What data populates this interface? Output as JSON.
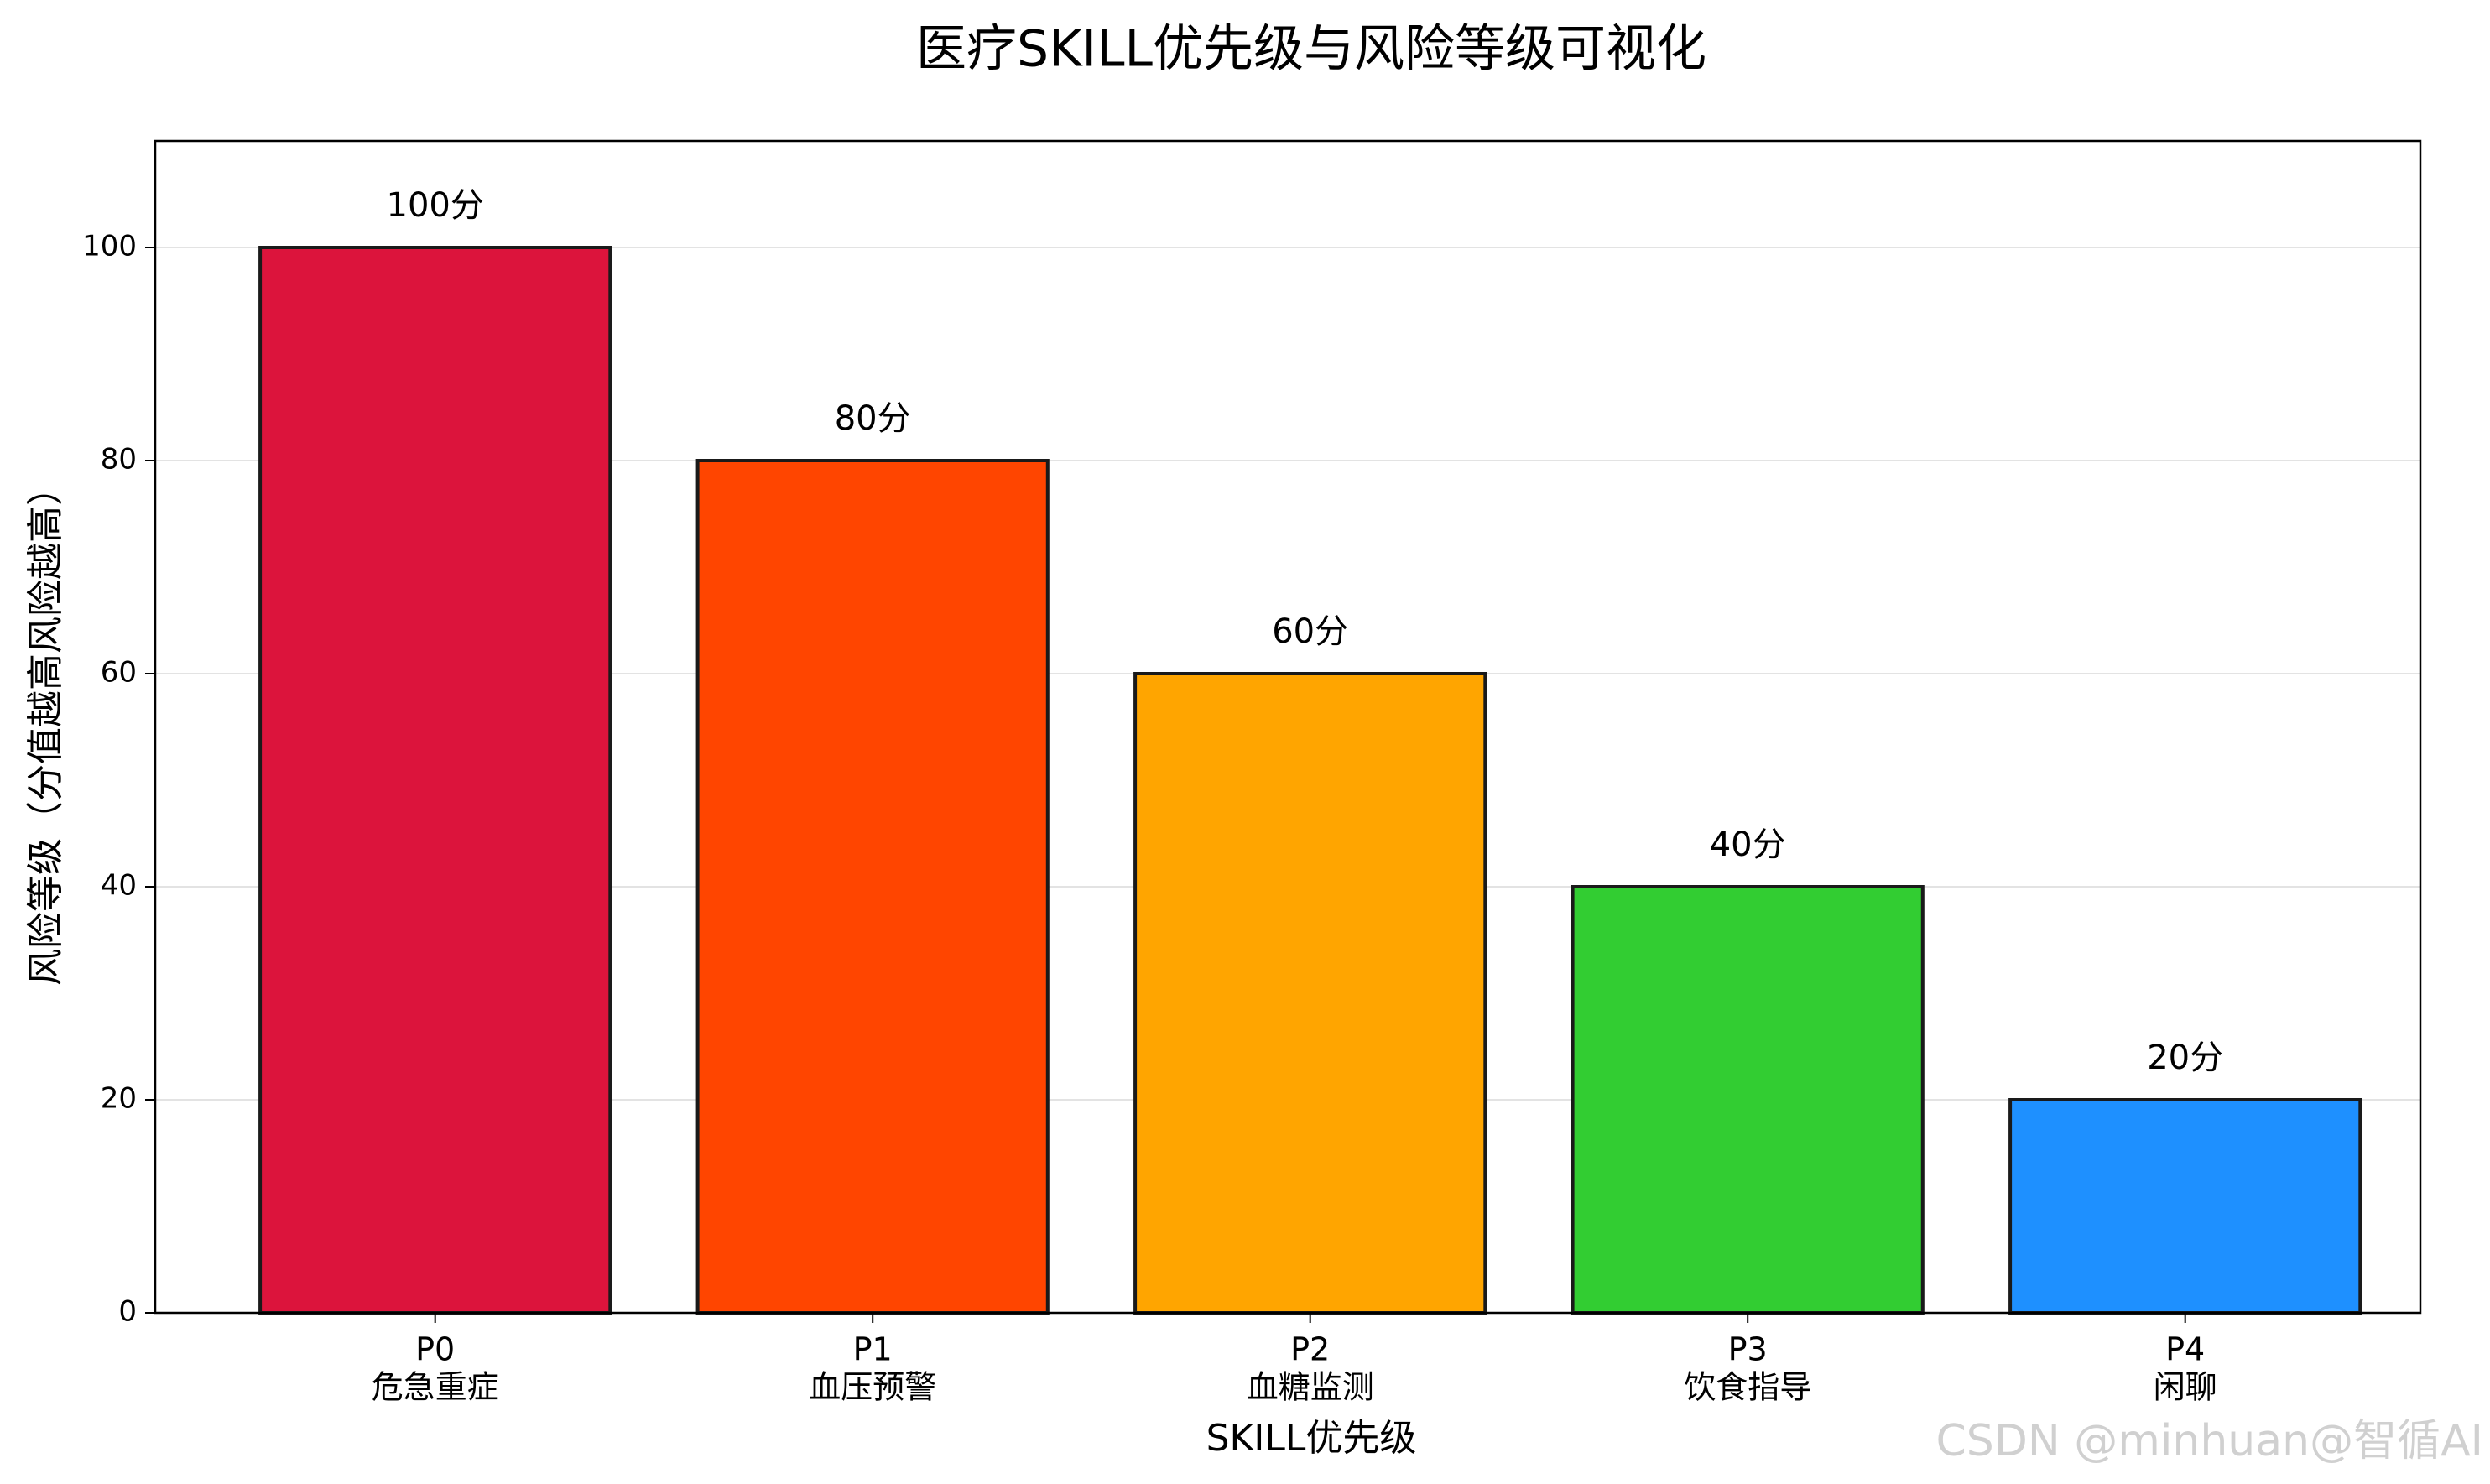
{
  "chart_data": {
    "type": "bar",
    "title": "医疗SKILL优先级与风险等级可视化",
    "x_label": "SKILL优先级",
    "y_label": "风险等级（分值越高风险越高）",
    "categories": [
      [
        "P0",
        "危急重症"
      ],
      [
        "P1",
        "血压预警"
      ],
      [
        "P2",
        "血糖监测"
      ],
      [
        "P3",
        "饮食指导"
      ],
      [
        "P4",
        "闲聊"
      ]
    ],
    "values": [
      100,
      80,
      60,
      40,
      20
    ],
    "value_labels": [
      "100分",
      "80分",
      "60分",
      "40分",
      "20分"
    ],
    "colors": [
      "#dc143c",
      "#ff4500",
      "#ffa500",
      "#32cd32",
      "#1e90ff"
    ],
    "ylim": [
      0,
      110
    ],
    "yticks": [
      0,
      20,
      40,
      60,
      80,
      100
    ],
    "grid": true
  },
  "watermark": "CSDN @minhuan@智循AI"
}
